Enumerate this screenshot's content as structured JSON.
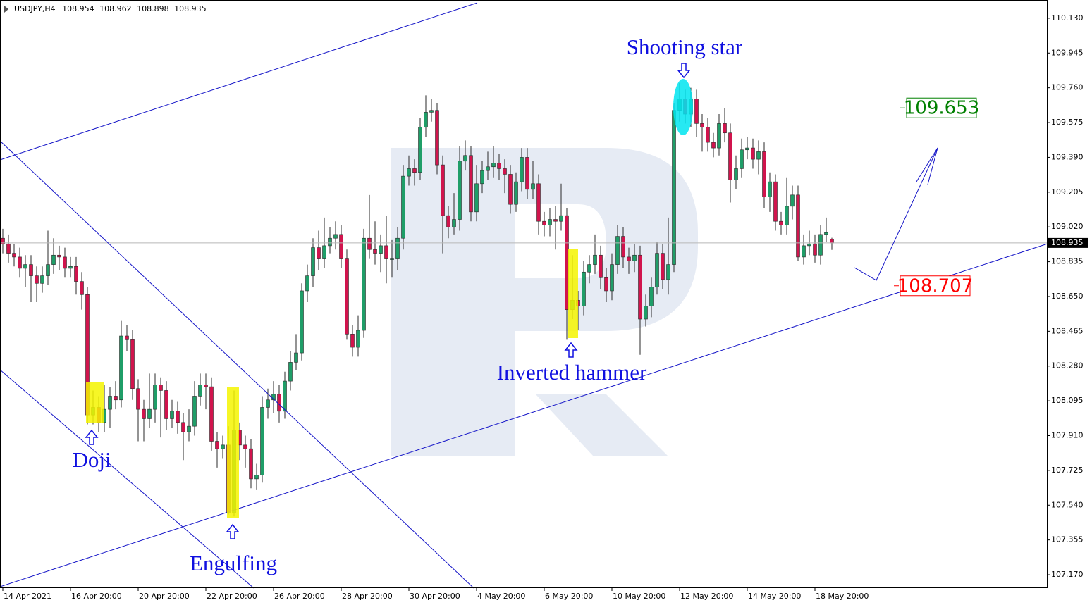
{
  "chart_data": {
    "type": "candlestick",
    "title": "USDJPY,H4",
    "categories": [
      "14 Apr 2021",
      null,
      null,
      null,
      null,
      null,
      null,
      null,
      null,
      null,
      null,
      null,
      "16 Apr 20:00",
      null,
      null,
      null,
      null,
      null,
      null,
      null,
      null,
      null,
      null,
      null,
      "20 Apr 20:00",
      null,
      null,
      null,
      null,
      null,
      null,
      null,
      null,
      null,
      null,
      null,
      "22 Apr 20:00",
      null,
      null,
      null,
      null,
      null,
      null,
      null,
      null,
      null,
      null,
      null,
      "26 Apr 20:00",
      null,
      null,
      null,
      null,
      null,
      null,
      null,
      null,
      null,
      null,
      null,
      "28 Apr 20:00",
      null,
      null,
      null,
      null,
      null,
      null,
      null,
      null,
      null,
      null,
      null,
      "30 Apr 20:00",
      null,
      null,
      null,
      null,
      null,
      null,
      null,
      null,
      null,
      null,
      null,
      "4 May 20:00",
      null,
      null,
      null,
      null,
      null,
      null,
      null,
      null,
      null,
      null,
      null,
      "6 May 20:00",
      null,
      null,
      null,
      null,
      null,
      null,
      null,
      null,
      null,
      null,
      null,
      "10 May 20:00",
      null,
      null,
      null,
      null,
      null,
      null,
      null,
      null,
      null,
      null,
      null,
      "12 May 20:00",
      null,
      null,
      null,
      null,
      null,
      null,
      null,
      null,
      null,
      null,
      null,
      "14 May 20:00",
      null,
      null,
      null,
      null,
      null,
      null,
      null,
      null,
      null,
      null,
      null,
      "18 May 20:00",
      null,
      null,
      null
    ],
    "open": [
      108.96,
      108.93,
      108.88,
      108.86,
      108.8,
      108.82,
      108.76,
      108.72,
      108.76,
      108.82,
      108.87,
      108.86,
      108.8,
      108.81,
      108.73,
      108.66,
      108.02,
      108.06,
      107.98,
      108.05,
      108.12,
      108.1,
      108.44,
      108.42,
      108.16,
      108.05,
      108.0,
      108.05,
      108.18,
      108.15,
      108.0,
      108.04,
      107.98,
      107.93,
      107.96,
      108.12,
      108.18,
      108.17,
      107.88,
      107.84,
      107.86,
      107.5,
      107.94,
      107.86,
      107.84,
      107.68,
      107.7,
      108.06,
      108.1,
      108.13,
      108.04,
      108.2,
      108.3,
      108.35,
      108.68,
      108.76,
      108.91,
      108.85,
      108.92,
      108.96,
      108.98,
      108.85,
      108.45,
      108.38,
      108.47,
      108.96,
      108.9,
      108.88,
      108.92,
      108.85,
      108.85,
      108.96,
      109.29,
      109.33,
      109.31,
      109.55,
      109.63,
      109.64,
      109.35,
      109.08,
      109.02,
      109.06,
      109.37,
      109.4,
      109.1,
      109.25,
      109.32,
      109.34,
      109.36,
      109.33,
      109.3,
      109.14,
      109.26,
      109.39,
      109.22,
      109.25,
      109.05,
      109.03,
      109.06,
      109.05,
      109.08,
      108.58,
      108.63,
      108.6,
      108.78,
      108.82,
      108.87,
      108.75,
      108.68,
      108.82,
      108.97,
      108.86,
      108.84,
      108.87,
      108.53,
      108.6,
      108.7,
      108.88,
      108.74,
      108.82,
      109.64,
      109.7,
      109.62,
      109.7,
      109.57,
      109.55,
      109.47,
      109.44,
      109.57,
      109.52,
      109.27,
      109.33,
      109.43,
      109.44,
      109.38,
      109.42,
      109.18,
      109.26,
      109.05,
      109.03,
      109.13,
      109.19,
      108.86,
      108.92,
      108.93,
      108.87,
      108.98,
      108.954
    ],
    "high": [
      109.01,
      108.98,
      108.93,
      108.91,
      108.87,
      108.87,
      108.81,
      108.81,
      109.0,
      108.96,
      108.92,
      108.91,
      108.86,
      108.86,
      108.78,
      108.7,
      108.15,
      108.12,
      108.18,
      108.17,
      108.2,
      108.52,
      108.5,
      108.47,
      108.21,
      108.1,
      108.24,
      108.24,
      108.22,
      108.2,
      108.1,
      108.09,
      108.03,
      108.05,
      108.2,
      108.24,
      108.24,
      108.22,
      107.93,
      107.91,
      107.96,
      108.15,
      107.98,
      107.91,
      107.89,
      107.76,
      108.12,
      108.16,
      108.2,
      108.18,
      108.25,
      108.36,
      108.45,
      108.72,
      108.82,
      108.96,
      109.0,
      109.07,
      109.02,
      109.05,
      109.03,
      108.9,
      108.5,
      108.55,
      109.01,
      109.19,
      109.05,
      108.98,
      109.08,
      108.95,
      109.02,
      109.35,
      109.4,
      109.38,
      109.6,
      109.72,
      109.7,
      109.68,
      109.4,
      109.13,
      109.2,
      109.45,
      109.48,
      109.45,
      109.35,
      109.37,
      109.42,
      109.45,
      109.41,
      109.38,
      109.35,
      109.31,
      109.44,
      109.44,
      109.37,
      109.3,
      109.1,
      109.12,
      109.13,
      109.25,
      109.12,
      108.87,
      108.68,
      108.84,
      108.87,
      108.98,
      108.92,
      108.8,
      108.88,
      109.03,
      109.02,
      108.91,
      108.93,
      108.92,
      108.66,
      108.75,
      108.94,
      108.93,
      109.07,
      109.68,
      109.785,
      109.75,
      109.76,
      109.75,
      109.62,
      109.6,
      109.52,
      109.62,
      109.65,
      109.57,
      109.4,
      109.49,
      109.5,
      109.49,
      109.48,
      109.47,
      109.31,
      109.3,
      109.1,
      109.28,
      109.24,
      109.24,
      108.98,
      109.0,
      108.98,
      109.03,
      109.07,
      108.962
    ],
    "low": [
      108.88,
      108.83,
      108.81,
      108.75,
      108.7,
      108.62,
      108.62,
      108.67,
      108.71,
      108.77,
      108.79,
      108.75,
      108.75,
      108.66,
      108.58,
      107.97,
      107.97,
      107.93,
      107.93,
      107.95,
      108.05,
      108.06,
      108.36,
      108.1,
      107.88,
      107.88,
      107.95,
      107.98,
      107.9,
      107.94,
      107.95,
      107.92,
      107.78,
      107.88,
      107.91,
      108.07,
      108.05,
      107.83,
      107.74,
      107.79,
      107.49,
      107.48,
      107.78,
      107.74,
      107.63,
      107.62,
      107.66,
      108.0,
      108.03,
      107.98,
      108.0,
      108.15,
      108.26,
      108.31,
      108.62,
      108.7,
      108.79,
      108.8,
      108.88,
      108.9,
      108.8,
      108.42,
      108.33,
      108.33,
      108.43,
      108.85,
      108.82,
      108.78,
      108.72,
      108.75,
      108.79,
      108.9,
      109.24,
      109.24,
      109.27,
      109.5,
      109.58,
      109.3,
      108.88,
      108.96,
      108.98,
      109.0,
      109.32,
      109.05,
      109.05,
      109.2,
      109.27,
      109.28,
      109.27,
      109.2,
      109.09,
      109.1,
      109.21,
      109.17,
      109.17,
      108.98,
      108.97,
      108.97,
      108.9,
      109.0,
      108.42,
      108.53,
      108.47,
      108.55,
      108.72,
      108.77,
      108.69,
      108.62,
      108.63,
      108.77,
      108.8,
      108.77,
      108.78,
      108.34,
      108.49,
      108.54,
      108.66,
      108.69,
      108.66,
      108.78,
      109.58,
      109.57,
      109.55,
      109.5,
      109.42,
      109.42,
      109.39,
      109.4,
      109.47,
      109.15,
      109.22,
      109.28,
      109.38,
      109.33,
      109.3,
      109.12,
      109.1,
      109.0,
      108.98,
      108.98,
      109.06,
      108.84,
      108.82,
      108.87,
      108.83,
      108.82,
      108.94,
      108.898
    ],
    "close": [
      108.93,
      108.88,
      108.86,
      108.8,
      108.82,
      108.76,
      108.72,
      108.76,
      108.82,
      108.87,
      108.86,
      108.8,
      108.81,
      108.73,
      108.66,
      108.02,
      108.06,
      107.98,
      108.05,
      108.12,
      108.1,
      108.44,
      108.42,
      108.16,
      108.05,
      108.0,
      108.05,
      108.18,
      108.15,
      108.0,
      108.04,
      107.98,
      107.93,
      107.96,
      108.12,
      108.18,
      108.17,
      107.88,
      107.84,
      107.86,
      107.5,
      107.94,
      107.86,
      107.84,
      107.68,
      107.7,
      108.06,
      108.1,
      108.13,
      108.04,
      108.2,
      108.3,
      108.35,
      108.68,
      108.76,
      108.91,
      108.85,
      108.92,
      108.96,
      108.98,
      108.85,
      108.45,
      108.38,
      108.47,
      108.96,
      108.9,
      108.88,
      108.92,
      108.85,
      108.85,
      108.96,
      109.29,
      109.33,
      109.31,
      109.55,
      109.63,
      109.64,
      109.35,
      109.08,
      109.02,
      109.06,
      109.37,
      109.4,
      109.1,
      109.25,
      109.32,
      109.34,
      109.36,
      109.33,
      109.3,
      109.14,
      109.26,
      109.39,
      109.22,
      109.25,
      109.05,
      109.03,
      109.06,
      109.05,
      109.08,
      108.58,
      108.63,
      108.6,
      108.78,
      108.82,
      108.87,
      108.75,
      108.68,
      108.82,
      108.97,
      108.86,
      108.84,
      108.87,
      108.53,
      108.6,
      108.7,
      108.88,
      108.74,
      108.82,
      109.64,
      109.7,
      109.62,
      109.7,
      109.57,
      109.55,
      109.47,
      109.44,
      109.57,
      109.52,
      109.27,
      109.33,
      109.43,
      109.44,
      109.38,
      109.42,
      109.18,
      109.26,
      109.05,
      109.03,
      109.13,
      109.19,
      108.86,
      108.92,
      108.93,
      108.87,
      108.98,
      108.99,
      108.935
    ],
    "bull_color": "#1f9e68",
    "bear_color": "#d1144d",
    "ylim": [
      107.099,
      110.227
    ],
    "yticks": [
      {
        "value": 110.13,
        "label": "110.130"
      },
      109.945,
      {
        "value": 109.76,
        "label": "109.760"
      },
      109.575,
      {
        "value": 109.39,
        "label": "109.390"
      },
      109.205,
      {
        "value": 109.02,
        "label": "109.020"
      },
      108.835,
      {
        "value": 108.65,
        "label": "108.650"
      },
      108.465,
      {
        "value": 108.28,
        "label": "108.280"
      },
      108.095,
      {
        "value": 107.91,
        "label": "107.910"
      },
      107.725,
      {
        "value": 107.54,
        "label": "107.540"
      },
      107.355,
      {
        "value": 107.17,
        "label": "107.170"
      }
    ],
    "levels": [
      {
        "value": 109.653,
        "color": "#008000"
      },
      {
        "value": 108.707,
        "color": "#ff0000"
      }
    ],
    "annotations": [
      "Shooting star",
      "Inverted hammer",
      "Doji",
      "Engulfing"
    ]
  }
}
